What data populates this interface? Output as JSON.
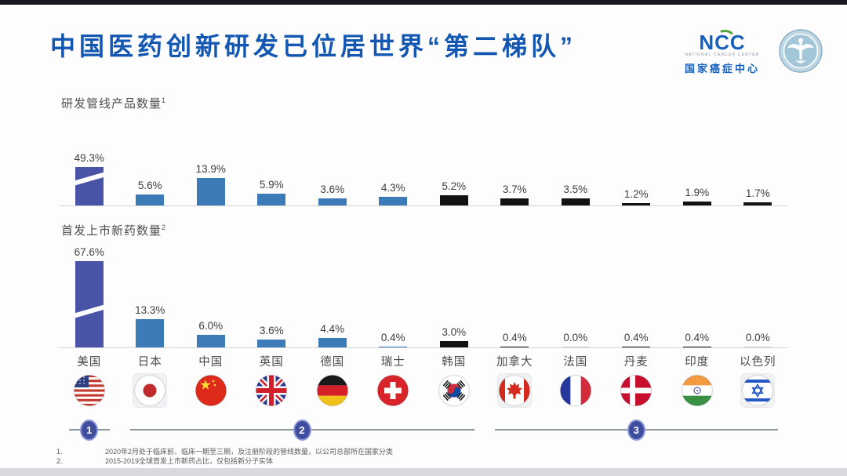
{
  "header": {
    "title": "中国医药创新研发已位居世界“第二梯队”",
    "logo": {
      "acronym": "NCC",
      "subtitle": "NATIONAL CANCER CENTER",
      "chinese_name": "国家癌症中心",
      "emblem_name": "national-cancer-center-round-emblem"
    }
  },
  "chart_data": [
    {
      "type": "bar",
      "title": "研发管线产品数量¹",
      "categories": [
        "美国",
        "日本",
        "中国",
        "英国",
        "德国",
        "瑞士",
        "韩国",
        "加拿大",
        "法国",
        "丹麦",
        "印度",
        "以色列"
      ],
      "values": [
        49.3,
        5.6,
        13.9,
        5.9,
        3.6,
        4.3,
        5.2,
        3.7,
        3.5,
        1.2,
        1.9,
        1.7
      ],
      "labels": [
        "49.3%",
        "5.6%",
        "13.9%",
        "5.9%",
        "3.6%",
        "4.3%",
        "5.2%",
        "3.7%",
        "3.5%",
        "1.2%",
        "1.9%",
        "1.7%"
      ],
      "bar_colors": [
        "#4a54a6",
        "#3d7ab8",
        "#3d7ab8",
        "#3d7ab8",
        "#3d7ab8",
        "#3d7ab8",
        "#121212",
        "#121212",
        "#121212",
        "#121212",
        "#121212",
        "#121212"
      ],
      "capped": [
        true,
        false,
        false,
        false,
        false,
        false,
        false,
        false,
        false,
        false,
        false,
        false
      ],
      "ylabel": "",
      "xlabel": "",
      "grid": false,
      "legend": null
    },
    {
      "type": "bar",
      "title": "首发上市新药数量²",
      "categories": [
        "美国",
        "日本",
        "中国",
        "英国",
        "德国",
        "瑞士",
        "韩国",
        "加拿大",
        "法国",
        "丹麦",
        "印度",
        "以色列"
      ],
      "values": [
        67.6,
        13.3,
        6.0,
        3.6,
        4.4,
        0.4,
        3.0,
        0.4,
        0.0,
        0.4,
        0.4,
        0.0
      ],
      "labels": [
        "67.6%",
        "13.3%",
        "6.0%",
        "3.6%",
        "4.4%",
        "0.4%",
        "3.0%",
        "0.4%",
        "0.0%",
        "0.4%",
        "0.4%",
        "0.0%"
      ],
      "bar_colors": [
        "#4a54a6",
        "#3d7ab8",
        "#3d7ab8",
        "#3d7ab8",
        "#3d7ab8",
        "#3d7ab8",
        "#121212",
        "#121212",
        "#121212",
        "#121212",
        "#121212",
        "#121212"
      ],
      "capped": [
        true,
        false,
        false,
        false,
        false,
        false,
        false,
        false,
        false,
        false,
        false,
        false
      ],
      "ylabel": "",
      "xlabel": "",
      "grid": false,
      "legend": null
    }
  ],
  "countries": [
    {
      "name": "美国",
      "flag": "us"
    },
    {
      "name": "日本",
      "flag": "jp"
    },
    {
      "name": "中国",
      "flag": "cn"
    },
    {
      "name": "英国",
      "flag": "gb"
    },
    {
      "name": "德国",
      "flag": "de"
    },
    {
      "name": "瑞士",
      "flag": "ch"
    },
    {
      "name": "韩国",
      "flag": "kr"
    },
    {
      "name": "加拿大",
      "flag": "ca"
    },
    {
      "name": "法国",
      "flag": "fr"
    },
    {
      "name": "丹麦",
      "flag": "dk"
    },
    {
      "name": "印度",
      "flag": "in"
    },
    {
      "name": "以色列",
      "flag": "il"
    }
  ],
  "tiers": [
    {
      "label": "1",
      "start": 0,
      "end": 0
    },
    {
      "label": "2",
      "start": 1,
      "end": 6
    },
    {
      "label": "3",
      "start": 7,
      "end": 11
    }
  ],
  "footnotes": [
    {
      "marker": "1.",
      "text": "2020年2月处于临床前、临床一期至三期，及注册阶段的管线数量，以公司总部所在国家分类"
    },
    {
      "marker": "2.",
      "text": "2015-2019全球首发上市新药占比，仅包括新分子实体"
    }
  ],
  "colors": {
    "title_blue": "#1357b3",
    "bar_blue": "#3d7ab8",
    "bar_indigo": "#4a54a6",
    "bar_black": "#121212",
    "badge_blue": "#3f4d9e",
    "logo_green": "#55a53f"
  }
}
